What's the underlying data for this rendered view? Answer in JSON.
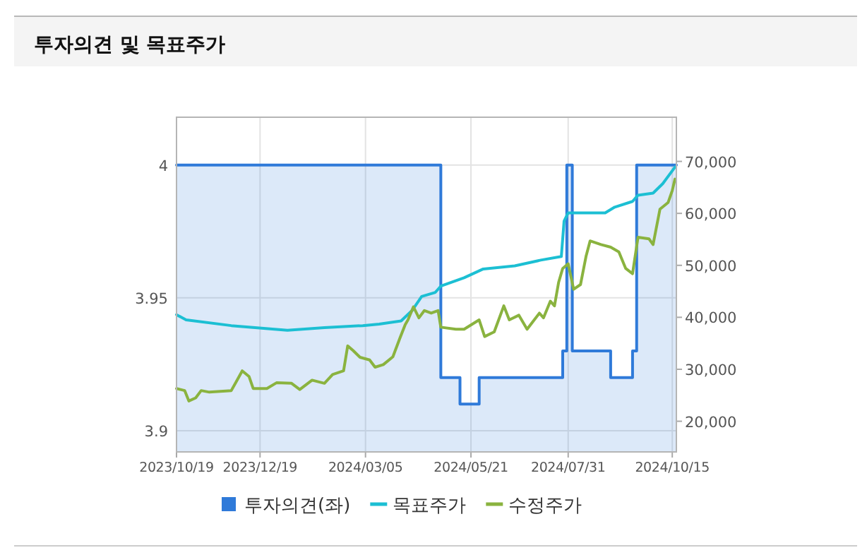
{
  "chart_data": {
    "type": "line",
    "title": "투자의견 및 목표주가",
    "xlim": [
      "2023-10-19",
      "2024-10-18"
    ],
    "xticks": [
      {
        "value": "2023-10-19",
        "label": "2023/10/19"
      },
      {
        "value": "2023-12-19",
        "label": "2023/12/19"
      },
      {
        "value": "2024-03-05",
        "label": "2024/03/05"
      },
      {
        "value": "2024-05-21",
        "label": "2024/05/21"
      },
      {
        "value": "2024-07-31",
        "label": "2024/07/31"
      },
      {
        "value": "2024-10-15",
        "label": "2024/10/15"
      }
    ],
    "ylim": [
      3.892,
      4.018
    ],
    "yticks": [
      3.9,
      3.95,
      4
    ],
    "y2lim": [
      14100,
      78500
    ],
    "y2ticks": [
      {
        "value": 20000,
        "label": "20,000"
      },
      {
        "value": 30000,
        "label": "30,000"
      },
      {
        "value": 40000,
        "label": "40,000"
      },
      {
        "value": 50000,
        "label": "50,000"
      },
      {
        "value": 60000,
        "label": "60,000"
      },
      {
        "value": 70000,
        "label": "70,000"
      }
    ],
    "grid": true,
    "legend": "bottom",
    "series": [
      {
        "name": "투자의견(좌)",
        "type": "area",
        "color": "#2f7ad9",
        "x": [
          "2023-10-19",
          "2024-04-29",
          "2024-04-29",
          "2024-05-13",
          "2024-05-13",
          "2024-05-27",
          "2024-05-27",
          "2024-07-27",
          "2024-07-27",
          "2024-07-30",
          "2024-07-30",
          "2024-08-03",
          "2024-08-03",
          "2024-08-31",
          "2024-08-31",
          "2024-09-16",
          "2024-09-16",
          "2024-09-19",
          "2024-09-19",
          "2024-10-18"
        ],
        "values": [
          4,
          4,
          3.92,
          3.92,
          3.91,
          3.91,
          3.92,
          3.92,
          3.93,
          3.93,
          4,
          4,
          3.93,
          3.93,
          3.92,
          3.92,
          3.93,
          3.93,
          4,
          4
        ]
      },
      {
        "name": "목표주가",
        "axis": "y2",
        "color": "#1cbfd3",
        "x": [
          "2023-10-19",
          "2023-10-26",
          "2023-11-28",
          "2024-01-08",
          "2024-02-04",
          "2024-03-03",
          "2024-03-15",
          "2024-03-31",
          "2024-04-08",
          "2024-04-15",
          "2024-04-25",
          "2024-04-29",
          "2024-05-16",
          "2024-05-30",
          "2024-06-22",
          "2024-07-11",
          "2024-07-26",
          "2024-07-28",
          "2024-07-31",
          "2024-08-27",
          "2024-09-03",
          "2024-09-16",
          "2024-09-20",
          "2024-10-01",
          "2024-10-08",
          "2024-10-17"
        ],
        "values": [
          40500,
          39500,
          38400,
          37500,
          38000,
          38400,
          38700,
          39300,
          41300,
          44000,
          44800,
          46000,
          47600,
          49300,
          49900,
          51000,
          51700,
          58500,
          60100,
          60100,
          61200,
          62300,
          63500,
          63900,
          65700,
          68900
        ]
      },
      {
        "name": "수정주가",
        "axis": "y2",
        "color": "#8ab33f",
        "x": [
          "2023-10-19",
          "2023-10-25",
          "2023-10-28",
          "2023-11-02",
          "2023-11-06",
          "2023-11-12",
          "2023-11-28",
          "2023-12-01",
          "2023-12-06",
          "2023-12-11",
          "2023-12-14",
          "2023-12-24",
          "2023-12-31",
          "2024-01-11",
          "2024-01-17",
          "2024-01-26",
          "2024-02-04",
          "2024-02-10",
          "2024-02-18",
          "2024-02-21",
          "2024-02-25",
          "2024-03-01",
          "2024-03-08",
          "2024-03-12",
          "2024-03-18",
          "2024-03-25",
          "2024-03-30",
          "2024-04-03",
          "2024-04-05",
          "2024-04-09",
          "2024-04-13",
          "2024-04-17",
          "2024-04-22",
          "2024-04-27",
          "2024-04-29",
          "2024-05-10",
          "2024-05-16",
          "2024-05-27",
          "2024-05-31",
          "2024-06-07",
          "2024-06-14",
          "2024-06-18",
          "2024-06-25",
          "2024-07-01",
          "2024-07-10",
          "2024-07-13",
          "2024-07-18",
          "2024-07-21",
          "2024-07-24",
          "2024-07-27",
          "2024-07-31",
          "2024-08-04",
          "2024-08-09",
          "2024-08-13",
          "2024-08-16",
          "2024-08-24",
          "2024-08-31",
          "2024-09-06",
          "2024-09-11",
          "2024-09-16",
          "2024-09-20",
          "2024-09-28",
          "2024-10-01",
          "2024-10-06",
          "2024-10-12",
          "2024-10-15",
          "2024-10-17"
        ],
        "values": [
          26300,
          25900,
          23900,
          24500,
          25900,
          25600,
          25900,
          27300,
          29700,
          28600,
          26300,
          26300,
          27400,
          27300,
          26100,
          27900,
          27300,
          29000,
          29700,
          34500,
          33600,
          32300,
          31800,
          30400,
          30900,
          32400,
          35900,
          38600,
          39500,
          42000,
          39900,
          41300,
          40800,
          41300,
          38100,
          37700,
          37700,
          39500,
          36300,
          37200,
          42200,
          39500,
          40400,
          37700,
          40800,
          39900,
          43100,
          42200,
          46700,
          49400,
          50300,
          45400,
          46300,
          51700,
          54700,
          54000,
          53500,
          52600,
          49400,
          48400,
          55400,
          55100,
          54000,
          60800,
          62100,
          64400,
          66600
        ]
      }
    ]
  }
}
